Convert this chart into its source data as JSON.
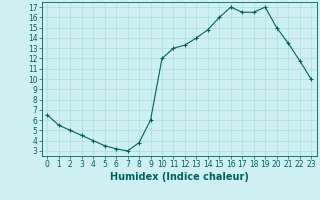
{
  "x": [
    0,
    1,
    2,
    3,
    4,
    5,
    6,
    7,
    8,
    9,
    10,
    11,
    12,
    13,
    14,
    15,
    16,
    17,
    18,
    19,
    20,
    21,
    22,
    23
  ],
  "y": [
    6.5,
    5.5,
    5.0,
    4.5,
    4.0,
    3.5,
    3.2,
    3.0,
    3.8,
    6.0,
    12.0,
    13.0,
    13.3,
    14.0,
    14.8,
    16.0,
    17.0,
    16.5,
    16.5,
    17.0,
    15.0,
    13.5,
    11.8,
    10.0
  ],
  "line_color": "#006060",
  "marker": "+",
  "marker_size": 3,
  "bg_color": "#cff0f0",
  "grid_color": "#aadddd",
  "xlabel": "Humidex (Indice chaleur)",
  "xlim": [
    -0.5,
    23.5
  ],
  "ylim": [
    2.5,
    17.5
  ],
  "yticks": [
    3,
    4,
    5,
    6,
    7,
    8,
    9,
    10,
    11,
    12,
    13,
    14,
    15,
    16,
    17
  ],
  "xticks": [
    0,
    1,
    2,
    3,
    4,
    5,
    6,
    7,
    8,
    9,
    10,
    11,
    12,
    13,
    14,
    15,
    16,
    17,
    18,
    19,
    20,
    21,
    22,
    23
  ],
  "tick_label_fontsize": 5.5,
  "xlabel_fontsize": 7.0
}
